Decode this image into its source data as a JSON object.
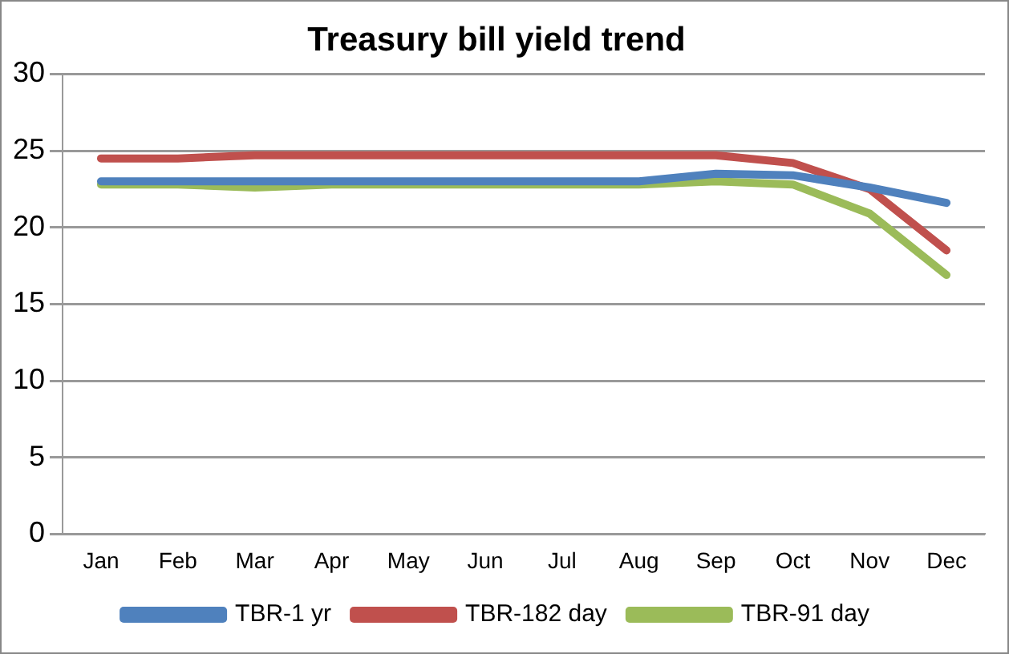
{
  "chart_data": {
    "type": "line",
    "title": "Treasury bill yield trend",
    "categories": [
      "Jan",
      "Feb",
      "Mar",
      "Apr",
      "May",
      "Jun",
      "Jul",
      "Aug",
      "Sep",
      "Oct",
      "Nov",
      "Dec"
    ],
    "series": [
      {
        "name": "TBR-1 yr",
        "color": "#4f81bd",
        "values": [
          23,
          23,
          23,
          23,
          23,
          23,
          23,
          23,
          23.5,
          23.4,
          22.6,
          21.6
        ]
      },
      {
        "name": "TBR-182 day",
        "color": "#c0504d",
        "values": [
          24.5,
          24.5,
          24.7,
          24.7,
          24.7,
          24.7,
          24.7,
          24.7,
          24.7,
          24.2,
          22.5,
          18.5
        ]
      },
      {
        "name": "TBR-91 day",
        "color": "#9bbb59",
        "values": [
          22.8,
          22.8,
          22.6,
          22.8,
          22.8,
          22.8,
          22.8,
          22.8,
          23,
          22.8,
          20.9,
          16.9
        ]
      }
    ],
    "ylim": [
      0,
      30
    ],
    "yticks": [
      0,
      5,
      10,
      15,
      20,
      25,
      30
    ],
    "grid": "y",
    "legend": "bottom",
    "marker": "none",
    "line_style": "solid"
  }
}
